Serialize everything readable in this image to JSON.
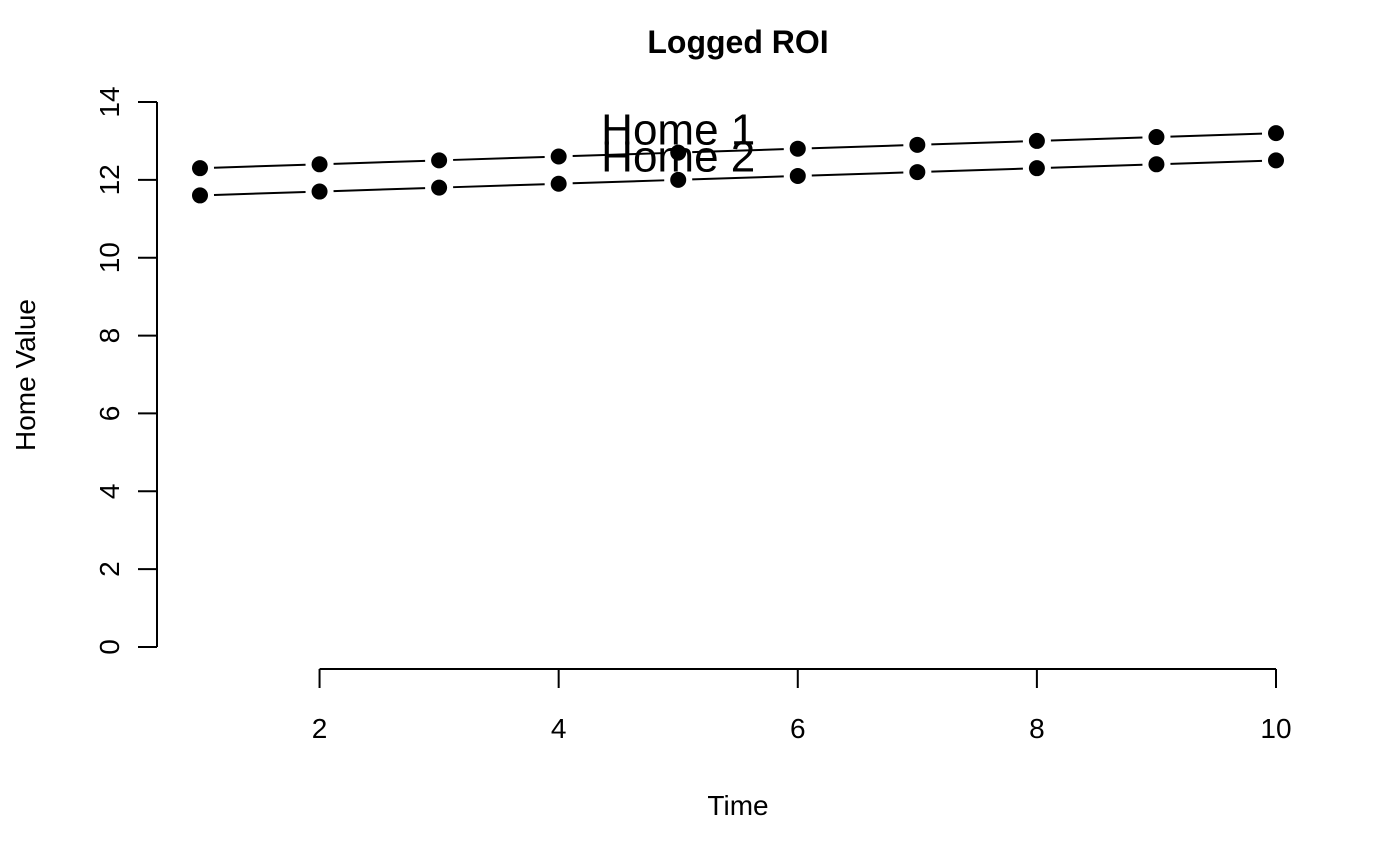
{
  "chart_data": {
    "type": "line",
    "title": "Logged ROI",
    "xlabel": "Time",
    "ylabel": "Home Value",
    "x": [
      1,
      2,
      3,
      4,
      5,
      6,
      7,
      8,
      9,
      10
    ],
    "xticks": [
      2,
      4,
      6,
      8,
      10
    ],
    "yticks": [
      0,
      2,
      4,
      6,
      8,
      10,
      12,
      14
    ],
    "xlim": [
      1,
      10
    ],
    "ylim": [
      0,
      14
    ],
    "grid": false,
    "series": [
      {
        "values": [
          12.3,
          12.4,
          12.5,
          12.6,
          12.7,
          12.8,
          12.9,
          13.0,
          13.1,
          13.2
        ]
      },
      {
        "values": [
          11.6,
          11.7,
          11.8,
          11.9,
          12.0,
          12.1,
          12.2,
          12.3,
          12.4,
          12.5
        ]
      }
    ],
    "annotations": [
      {
        "text": "Home 1",
        "x": 5,
        "y": 13.3
      },
      {
        "text": "Home 2",
        "x": 5,
        "y": 12.6
      }
    ]
  }
}
